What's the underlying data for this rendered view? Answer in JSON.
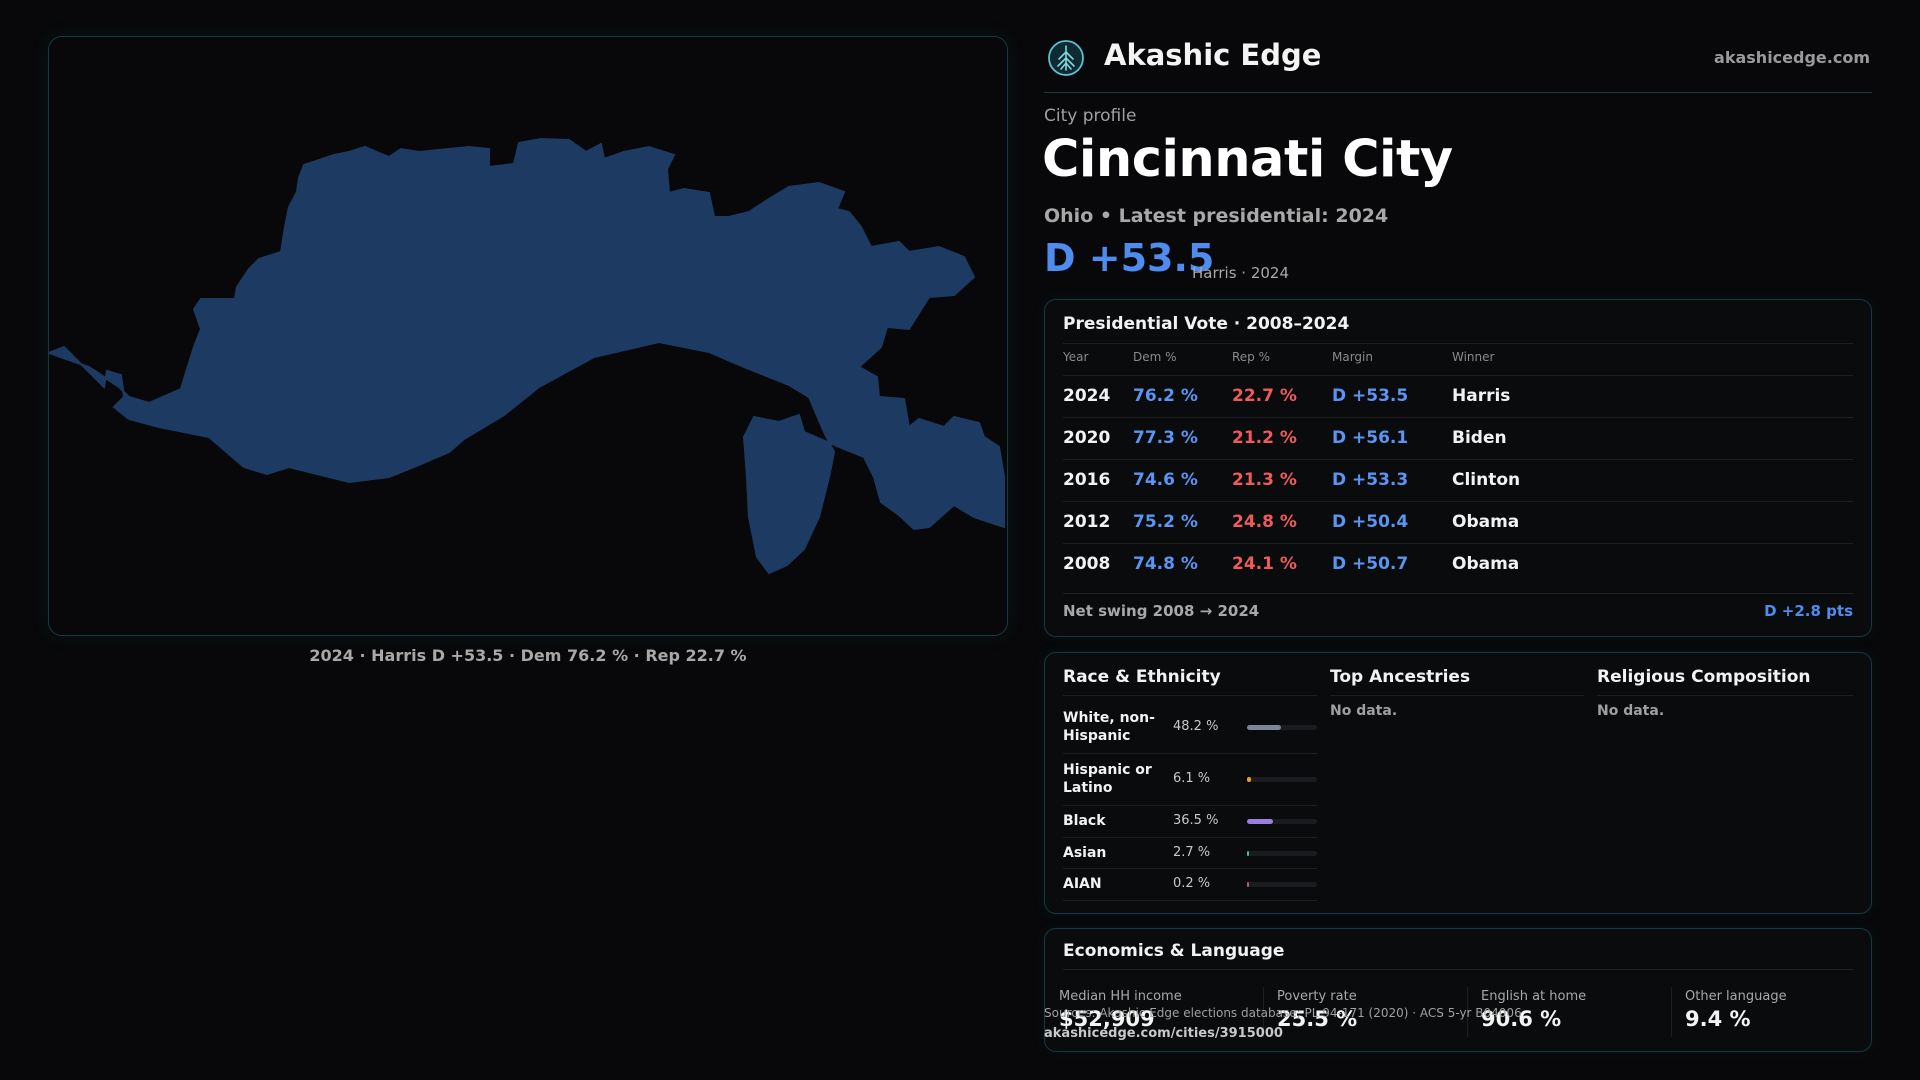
{
  "map": {
    "caption": "2024 · Harris D +53.5 · Dem 76.2 % · Rep 22.7 %",
    "fill_color": "#1d3b62"
  },
  "brand": {
    "name": "Akashic Edge",
    "url": "akashicedge.com",
    "logo_icon": "tree-icon"
  },
  "profile": {
    "kicker": "City profile",
    "title": "Cincinnati City",
    "subtitle": "Ohio • Latest presidential: 2024",
    "margin": "D +53.5",
    "margin_note": "Harris · 2024"
  },
  "vote": {
    "title": "Presidential Vote · 2008–2024",
    "headers": [
      "Year",
      "Dem %",
      "Rep %",
      "Margin",
      "Winner"
    ],
    "rows": [
      {
        "year": "2024",
        "dem": "76.2 %",
        "rep": "22.7 %",
        "margin": "D +53.5",
        "winner": "Harris"
      },
      {
        "year": "2020",
        "dem": "77.3 %",
        "rep": "21.2 %",
        "margin": "D +56.1",
        "winner": "Biden"
      },
      {
        "year": "2016",
        "dem": "74.6 %",
        "rep": "21.3 %",
        "margin": "D +53.3",
        "winner": "Clinton"
      },
      {
        "year": "2012",
        "dem": "75.2 %",
        "rep": "24.8 %",
        "margin": "D +50.4",
        "winner": "Obama"
      },
      {
        "year": "2008",
        "dem": "74.8 %",
        "rep": "24.1 %",
        "margin": "D +50.7",
        "winner": "Obama"
      }
    ],
    "swing_label": "Net swing 2008 → 2024",
    "swing_value": "D +2.8 pts"
  },
  "demographics": {
    "race_title": "Race & Ethnicity",
    "race": [
      {
        "name": "White, non-Hispanic",
        "pct": "48.2 %",
        "share": 0.482,
        "color": "#7b8594"
      },
      {
        "name": "Hispanic or Latino",
        "pct": "6.1 %",
        "share": 0.061,
        "color": "#e89a2c"
      },
      {
        "name": "Black",
        "pct": "36.5 %",
        "share": 0.365,
        "color": "#9b7fe0"
      },
      {
        "name": "Asian",
        "pct": "2.7 %",
        "share": 0.027,
        "color": "#3fc08a"
      },
      {
        "name": "AIAN",
        "pct": "0.2 %",
        "share": 0.002,
        "color": "#c05a5a"
      }
    ],
    "ancestry_title": "Top Ancestries",
    "ancestry_empty": "No data.",
    "religion_title": "Religious Composition",
    "religion_empty": "No data."
  },
  "economics": {
    "title": "Economics & Language",
    "stats": [
      {
        "label": "Median HH income",
        "value": "$52,909"
      },
      {
        "label": "Poverty rate",
        "value": "25.5 %"
      },
      {
        "label": "English at home",
        "value": "90.6 %"
      },
      {
        "label": "Other language",
        "value": "9.4 %"
      }
    ]
  },
  "footer": {
    "source": "Sources: Akashic Edge elections database; PL 94-171 (2020) · ACS 5-yr B04006",
    "url": "akashicedge.com/cities/3915000"
  }
}
